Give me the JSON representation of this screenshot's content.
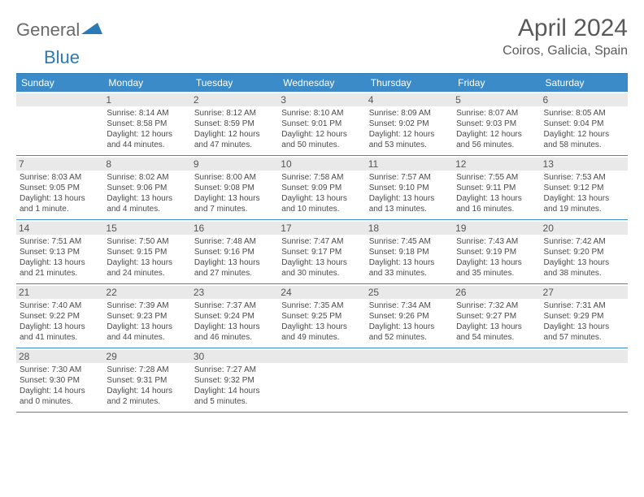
{
  "logo": {
    "text1": "General",
    "text2": "Blue"
  },
  "title": "April 2024",
  "location": "Coiros, Galicia, Spain",
  "day_headers": [
    "Sunday",
    "Monday",
    "Tuesday",
    "Wednesday",
    "Thursday",
    "Friday",
    "Saturday"
  ],
  "colors": {
    "header_bg": "#3b8bc9",
    "header_text": "#ffffff",
    "rule": "#3b8bc9",
    "daynum_bg": "#e9e9e9",
    "text": "#4a4a4a",
    "logo_blue": "#2a7ab8"
  },
  "weeks": [
    [
      {
        "n": "",
        "lines": []
      },
      {
        "n": "1",
        "lines": [
          "Sunrise: 8:14 AM",
          "Sunset: 8:58 PM",
          "Daylight: 12 hours and 44 minutes."
        ]
      },
      {
        "n": "2",
        "lines": [
          "Sunrise: 8:12 AM",
          "Sunset: 8:59 PM",
          "Daylight: 12 hours and 47 minutes."
        ]
      },
      {
        "n": "3",
        "lines": [
          "Sunrise: 8:10 AM",
          "Sunset: 9:01 PM",
          "Daylight: 12 hours and 50 minutes."
        ]
      },
      {
        "n": "4",
        "lines": [
          "Sunrise: 8:09 AM",
          "Sunset: 9:02 PM",
          "Daylight: 12 hours and 53 minutes."
        ]
      },
      {
        "n": "5",
        "lines": [
          "Sunrise: 8:07 AM",
          "Sunset: 9:03 PM",
          "Daylight: 12 hours and 56 minutes."
        ]
      },
      {
        "n": "6",
        "lines": [
          "Sunrise: 8:05 AM",
          "Sunset: 9:04 PM",
          "Daylight: 12 hours and 58 minutes."
        ]
      }
    ],
    [
      {
        "n": "7",
        "lines": [
          "Sunrise: 8:03 AM",
          "Sunset: 9:05 PM",
          "Daylight: 13 hours and 1 minute."
        ]
      },
      {
        "n": "8",
        "lines": [
          "Sunrise: 8:02 AM",
          "Sunset: 9:06 PM",
          "Daylight: 13 hours and 4 minutes."
        ]
      },
      {
        "n": "9",
        "lines": [
          "Sunrise: 8:00 AM",
          "Sunset: 9:08 PM",
          "Daylight: 13 hours and 7 minutes."
        ]
      },
      {
        "n": "10",
        "lines": [
          "Sunrise: 7:58 AM",
          "Sunset: 9:09 PM",
          "Daylight: 13 hours and 10 minutes."
        ]
      },
      {
        "n": "11",
        "lines": [
          "Sunrise: 7:57 AM",
          "Sunset: 9:10 PM",
          "Daylight: 13 hours and 13 minutes."
        ]
      },
      {
        "n": "12",
        "lines": [
          "Sunrise: 7:55 AM",
          "Sunset: 9:11 PM",
          "Daylight: 13 hours and 16 minutes."
        ]
      },
      {
        "n": "13",
        "lines": [
          "Sunrise: 7:53 AM",
          "Sunset: 9:12 PM",
          "Daylight: 13 hours and 19 minutes."
        ]
      }
    ],
    [
      {
        "n": "14",
        "lines": [
          "Sunrise: 7:51 AM",
          "Sunset: 9:13 PM",
          "Daylight: 13 hours and 21 minutes."
        ]
      },
      {
        "n": "15",
        "lines": [
          "Sunrise: 7:50 AM",
          "Sunset: 9:15 PM",
          "Daylight: 13 hours and 24 minutes."
        ]
      },
      {
        "n": "16",
        "lines": [
          "Sunrise: 7:48 AM",
          "Sunset: 9:16 PM",
          "Daylight: 13 hours and 27 minutes."
        ]
      },
      {
        "n": "17",
        "lines": [
          "Sunrise: 7:47 AM",
          "Sunset: 9:17 PM",
          "Daylight: 13 hours and 30 minutes."
        ]
      },
      {
        "n": "18",
        "lines": [
          "Sunrise: 7:45 AM",
          "Sunset: 9:18 PM",
          "Daylight: 13 hours and 33 minutes."
        ]
      },
      {
        "n": "19",
        "lines": [
          "Sunrise: 7:43 AM",
          "Sunset: 9:19 PM",
          "Daylight: 13 hours and 35 minutes."
        ]
      },
      {
        "n": "20",
        "lines": [
          "Sunrise: 7:42 AM",
          "Sunset: 9:20 PM",
          "Daylight: 13 hours and 38 minutes."
        ]
      }
    ],
    [
      {
        "n": "21",
        "lines": [
          "Sunrise: 7:40 AM",
          "Sunset: 9:22 PM",
          "Daylight: 13 hours and 41 minutes."
        ]
      },
      {
        "n": "22",
        "lines": [
          "Sunrise: 7:39 AM",
          "Sunset: 9:23 PM",
          "Daylight: 13 hours and 44 minutes."
        ]
      },
      {
        "n": "23",
        "lines": [
          "Sunrise: 7:37 AM",
          "Sunset: 9:24 PM",
          "Daylight: 13 hours and 46 minutes."
        ]
      },
      {
        "n": "24",
        "lines": [
          "Sunrise: 7:35 AM",
          "Sunset: 9:25 PM",
          "Daylight: 13 hours and 49 minutes."
        ]
      },
      {
        "n": "25",
        "lines": [
          "Sunrise: 7:34 AM",
          "Sunset: 9:26 PM",
          "Daylight: 13 hours and 52 minutes."
        ]
      },
      {
        "n": "26",
        "lines": [
          "Sunrise: 7:32 AM",
          "Sunset: 9:27 PM",
          "Daylight: 13 hours and 54 minutes."
        ]
      },
      {
        "n": "27",
        "lines": [
          "Sunrise: 7:31 AM",
          "Sunset: 9:29 PM",
          "Daylight: 13 hours and 57 minutes."
        ]
      }
    ],
    [
      {
        "n": "28",
        "lines": [
          "Sunrise: 7:30 AM",
          "Sunset: 9:30 PM",
          "Daylight: 14 hours and 0 minutes."
        ]
      },
      {
        "n": "29",
        "lines": [
          "Sunrise: 7:28 AM",
          "Sunset: 9:31 PM",
          "Daylight: 14 hours and 2 minutes."
        ]
      },
      {
        "n": "30",
        "lines": [
          "Sunrise: 7:27 AM",
          "Sunset: 9:32 PM",
          "Daylight: 14 hours and 5 minutes."
        ]
      },
      {
        "n": "",
        "lines": []
      },
      {
        "n": "",
        "lines": []
      },
      {
        "n": "",
        "lines": []
      },
      {
        "n": "",
        "lines": []
      }
    ]
  ]
}
